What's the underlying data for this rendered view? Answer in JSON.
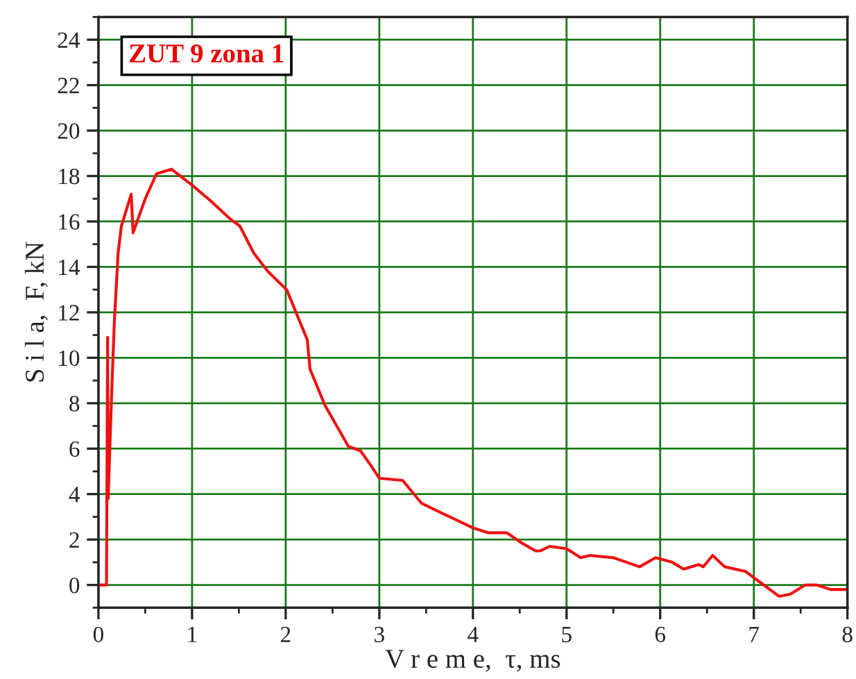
{
  "chart_data": {
    "type": "line",
    "xlabel": "V r e m e,  τ, ms",
    "ylabel": "S i l a,  F, kN",
    "annotations": [
      "ZUT 9 zona 1"
    ],
    "series": [
      {
        "color": "#ee1111",
        "x": [
          0,
          0.086,
          0.098,
          0.104,
          0.14,
          0.17,
          0.21,
          0.245,
          0.35,
          0.37,
          0.5,
          0.62,
          0.78,
          1.0,
          1.2,
          1.41,
          1.51,
          1.66,
          1.81,
          2.01,
          2.23,
          2.26,
          2.42,
          2.67,
          2.8,
          2.92,
          3.0,
          3.25,
          3.45,
          3.7,
          4.01,
          4.16,
          4.36,
          4.54,
          4.67,
          4.72,
          4.82,
          5.0,
          5.15,
          5.25,
          5.5,
          5.78,
          5.95,
          6.13,
          6.25,
          6.41,
          6.46,
          6.56,
          6.69,
          6.91,
          7.04,
          7.27,
          7.39,
          7.55,
          7.67,
          7.82,
          8.0
        ],
        "values": [
          0,
          0,
          10.9,
          3.8,
          8.3,
          11.6,
          14.6,
          15.8,
          17.2,
          15.5,
          17.0,
          18.1,
          18.3,
          17.6,
          16.9,
          16.1,
          15.8,
          14.6,
          13.8,
          13.0,
          10.8,
          9.5,
          7.9,
          6.1,
          5.9,
          5.2,
          4.7,
          4.6,
          3.6,
          3.1,
          2.5,
          2.3,
          2.3,
          1.8,
          1.5,
          1.5,
          1.7,
          1.6,
          1.2,
          1.3,
          1.2,
          0.8,
          1.2,
          1.0,
          0.7,
          0.9,
          0.8,
          1.3,
          0.8,
          0.6,
          0.2,
          -0.5,
          -0.4,
          0.0,
          0.0,
          -0.2,
          -0.2
        ]
      }
    ],
    "xlim": [
      0,
      8
    ],
    "xticks": [
      0,
      1,
      2,
      3,
      4,
      5,
      6,
      7,
      8
    ],
    "ylim": [
      -1,
      25
    ],
    "yticks": [
      0,
      2,
      4,
      6,
      8,
      10,
      12,
      14,
      16,
      18,
      20,
      22,
      24
    ],
    "grid": true
  }
}
